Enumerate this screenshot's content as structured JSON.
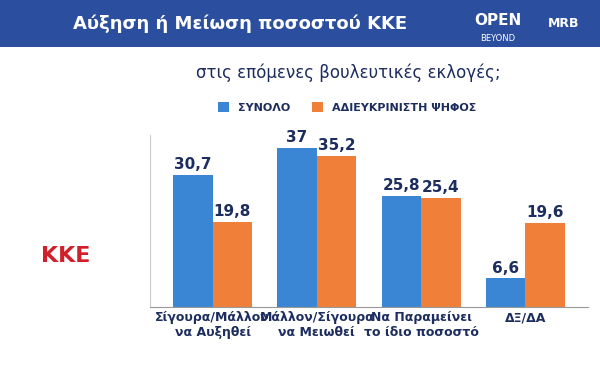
{
  "chart_data": {
    "type": "bar",
    "title": "Αύξηση ή Μείωση ποσοστού ΚΚΕ",
    "subtitle": "στις επόμενες βουλευτικές εκλογές;",
    "annotations": [
      "OPEN",
      "BEYOND",
      "MRB",
      "ΚΚΕ"
    ],
    "categories": [
      "Σίγουρα/Μάλλον\nνα Αυξηθεί",
      "Μάλλον/Σίγουρα\nνα Μειωθεί",
      "Να Παραμείνει\nτο ίδιο ποσοστό",
      "ΔΞ/ΔΑ"
    ],
    "series": [
      {
        "name": "ΣΥΝΟΛΟ",
        "color": "#3b86d4",
        "values": [
          30.7,
          37,
          25.8,
          6.6
        ],
        "value_labels": [
          "30,7",
          "37",
          "25,8",
          "6,6"
        ]
      },
      {
        "name": "ΑΔΙΕΥΚΡΙΝΙΣΤΗ ΨΗΦΟΣ",
        "color": "#f07f3a",
        "values": [
          19.8,
          35.2,
          25.4,
          19.6
        ],
        "value_labels": [
          "19,8",
          "35,2",
          "25,4",
          "19,6"
        ]
      }
    ],
    "ylim": [
      0,
      40
    ],
    "yticks": [],
    "grid": false,
    "legend": "upper center",
    "data_labels": true,
    "tick_labels": "x"
  }
}
